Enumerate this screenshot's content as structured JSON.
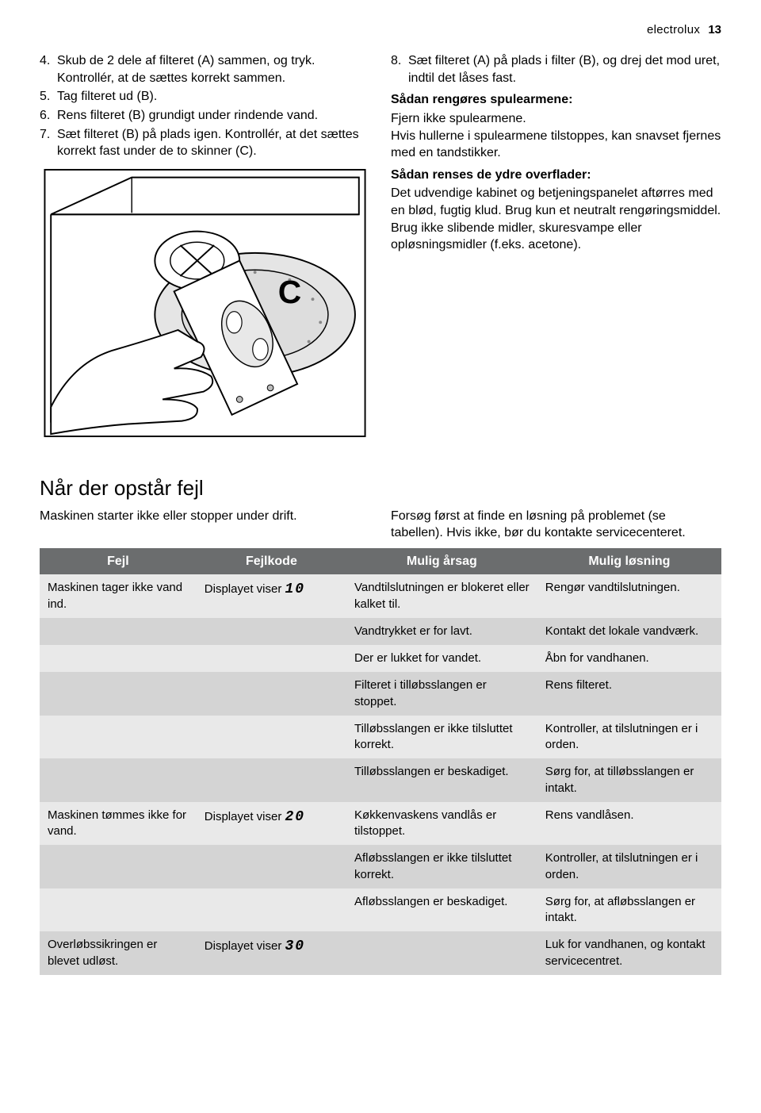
{
  "header": {
    "brand": "electrolux",
    "pagenum": "13"
  },
  "left": {
    "steps": [
      {
        "n": "4.",
        "t": "Skub de 2 dele af filteret (A) sammen, og tryk. Kontrollér, at de sættes korrekt sammen."
      },
      {
        "n": "5.",
        "t": "Tag filteret ud (B)."
      },
      {
        "n": "6.",
        "t": "Rens filteret (B) grundigt under rindende vand."
      },
      {
        "n": "7.",
        "t": "Sæt filteret (B) på plads igen. Kontrollér, at det sættes korrekt fast under de to skinner (C)."
      }
    ]
  },
  "right": {
    "step8": {
      "n": "8.",
      "t": "Sæt filteret (A) på plads i filter (B), og drej det mod uret, indtil det låses fast."
    },
    "h1": "Sådan rengøres spulearmene:",
    "p1a": "Fjern ikke spulearmene.",
    "p1b": "Hvis hullerne i spulearmene tilstoppes, kan snavset fjernes med en tandstikker.",
    "h2": "Sådan renses de ydre overflader:",
    "p2": "Det udvendige kabinet og betjeningspanelet aftørres med en blød, fugtig klud. Brug kun et neutralt rengøringsmiddel. Brug ikke slibende midler, skuresvampe eller opløsningsmidler (f.eks. acetone)."
  },
  "faults": {
    "title": "Når der opstår fejl",
    "intro_left": "Maskinen starter ikke eller stopper under drift.",
    "intro_right": "Forsøg først at finde en løsning på problemet (se tabellen). Hvis ikke, bør du kontakte servicecenteret.",
    "headers": [
      "Fejl",
      "Fejlkode",
      "Mulig årsag",
      "Mulig løsning"
    ],
    "codes": {
      "c1": "Displayet viser",
      "d1": "10",
      "c2": "Displayet viser",
      "d2": "20",
      "c3": "Displayet viser",
      "d3": "30"
    },
    "rows": [
      {
        "r": 0,
        "cells": [
          "Maskinen tager ikke vand ind.",
          {
            "code": "c1"
          },
          "Vandtilslutningen er blokeret eller kalket til.",
          "Rengør vandtilslutningen."
        ]
      },
      {
        "r": 1,
        "cells": [
          "",
          "",
          "Vandtrykket er for lavt.",
          "Kontakt det lokale vandværk."
        ]
      },
      {
        "r": 0,
        "cells": [
          "",
          "",
          "Der er lukket for vandet.",
          "Åbn for vandhanen."
        ]
      },
      {
        "r": 1,
        "cells": [
          "",
          "",
          "Filteret i tilløbsslangen er stoppet.",
          "Rens filteret."
        ]
      },
      {
        "r": 0,
        "cells": [
          "",
          "",
          "Tilløbsslangen er ikke tilsluttet korrekt.",
          "Kontroller, at tilslutningen er i orden."
        ]
      },
      {
        "r": 1,
        "cells": [
          "",
          "",
          "Tilløbsslangen er beskadiget.",
          "Sørg for, at tilløbsslangen er intakt."
        ]
      },
      {
        "r": 0,
        "cells": [
          "Maskinen tømmes ikke for vand.",
          {
            "code": "c2"
          },
          "Køkkenvaskens vandlås er tilstoppet.",
          "Rens vandlåsen."
        ]
      },
      {
        "r": 1,
        "cells": [
          "",
          "",
          "Afløbsslangen er ikke tilsluttet korrekt.",
          "Kontroller, at tilslutningen er i orden."
        ]
      },
      {
        "r": 0,
        "cells": [
          "",
          "",
          "Afløbsslangen er beskadiget.",
          "Sørg for, at afløbsslangen er intakt."
        ]
      },
      {
        "r": 1,
        "cells": [
          "Overløbssikringen er blevet udløst.",
          {
            "code": "c3"
          },
          "",
          "Luk for vandhanen, og kontakt servicecentret."
        ]
      }
    ]
  },
  "illustration": {
    "label_C": "C"
  }
}
